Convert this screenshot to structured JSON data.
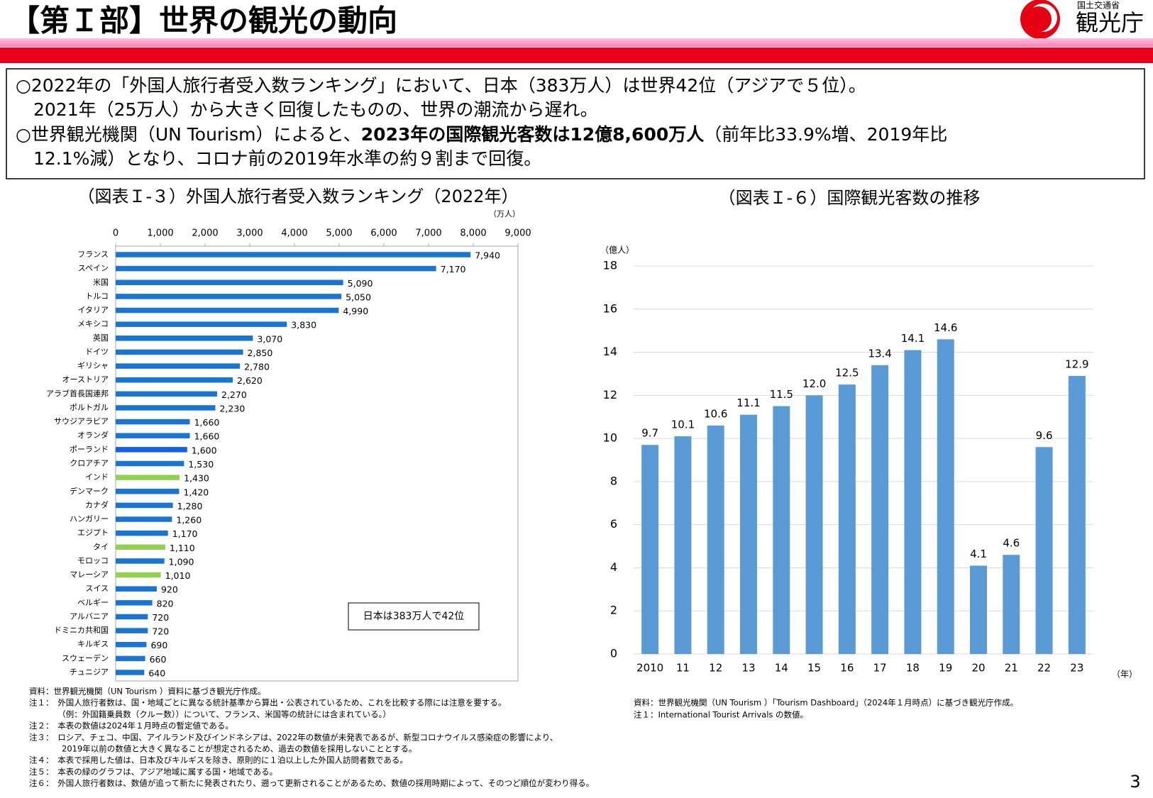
{
  "header": {
    "title": "【第Ｉ部】世界の観光の動向",
    "ministry": "国土交通省",
    "agency": "観光庁"
  },
  "summary": {
    "lines": [
      [
        "○2022年の「外国人旅行者受入数ランキング」において、日本（383万人）は世界42位（アジアで５位）。"
      ],
      [
        "　2021年（25万人）から大きく回復したものの、世界の潮流から遅れ。"
      ],
      [
        "○世界観光機関（UN Tourism）によると、",
        "2023年の国際観光客数は12億8,600万人",
        "（前年比33.9%増、2019年比"
      ],
      [
        "　12.1%減）となり、コロナ前の2019年水準の約９割まで回復。"
      ]
    ]
  },
  "chart_data": [
    {
      "type": "bar",
      "horizontal": true,
      "title": "（図表Ｉ-３）外国人旅行者受入数ランキング（2022年）",
      "unit": "（万人）",
      "categories": [
        "フランス",
        "スペイン",
        "米国",
        "トルコ",
        "イタリア",
        "メキシコ",
        "英国",
        "ドイツ",
        "ギリシャ",
        "オーストリア",
        "アラブ首長国連邦",
        "ポルトガル",
        "サウジアラビア",
        "オランダ",
        "ポーランド",
        "クロアチア",
        "インド",
        "デンマーク",
        "カナダ",
        "ハンガリー",
        "エジプト",
        "タイ",
        "モロッコ",
        "マレーシア",
        "スイス",
        "ベルギー",
        "アルバニア",
        "ドミニカ共和国",
        "キルギス",
        "スウェーデン",
        "チュニジア"
      ],
      "values": [
        7940,
        7170,
        5090,
        5050,
        4990,
        3830,
        3070,
        2850,
        2780,
        2620,
        2270,
        2230,
        1660,
        1660,
        1600,
        1530,
        1430,
        1420,
        1280,
        1260,
        1170,
        1110,
        1090,
        1010,
        920,
        820,
        720,
        720,
        690,
        660,
        640
      ],
      "value_labels": [
        "7,940",
        "7,170",
        "5,090",
        "5,050",
        "4,990",
        "3,830",
        "3,070",
        "2,850",
        "2,780",
        "2,620",
        "2,270",
        "2,230",
        "1,660",
        "1,660",
        "1,600",
        "1,530",
        "1,430",
        "1,420",
        "1,280",
        "1,260",
        "1,170",
        "1,110",
        "1,090",
        "1,010",
        "920",
        "820",
        "720",
        "720",
        "690",
        "660",
        "640"
      ],
      "colors": [
        "#1a75d2",
        "#1a75d2",
        "#1a75d2",
        "#1a75d2",
        "#1a75d2",
        "#1a75d2",
        "#1a75d2",
        "#1a75d2",
        "#1a75d2",
        "#1a75d2",
        "#1a75d2",
        "#1a75d2",
        "#1a75d2",
        "#1a75d2",
        "#1560e0",
        "#1a75d2",
        "#92d050",
        "#1a75d2",
        "#1a75d2",
        "#1a75d2",
        "#1a75d2",
        "#92d050",
        "#1a75d2",
        "#92d050",
        "#1a75d2",
        "#1a75d2",
        "#1a75d2",
        "#1a75d2",
        "#1a75d2",
        "#1a75d2",
        "#1a75d2"
      ],
      "xlim": [
        0,
        9000
      ],
      "xticks": [
        0,
        {
          "value": 1000,
          "label": "1,000"
        },
        {
          "value": 2000,
          "label": "2,000"
        },
        {
          "value": 3000,
          "label": "3,000"
        },
        {
          "value": 4000,
          "label": "4,000"
        },
        {
          "value": 5000,
          "label": "5,000"
        },
        {
          "value": 6000,
          "label": "6,000"
        },
        {
          "value": 7000,
          "label": "7,000"
        },
        {
          "value": 8000,
          "label": "8,000"
        },
        {
          "value": 9000,
          "label": "9,000"
        }
      ],
      "grid": false,
      "annotation": "日本は383万人で42位",
      "notes": [
        "資料：世界観光機関（UN Tourism ）資料に基づき観光庁作成。",
        "注１：　外国人旅行者数は、国・地域ごとに異なる統計基準から算出・公表されているため、これを比較する際には注意を要する。",
        "　　　　（例：外国籍乗員数（クルー数））について、フランス、米国等の統計には含まれている。）",
        "注２：　本表の数値は2024年１月時点の暫定値である。",
        "注３：　ロシア、チェコ、中国、アイルランド及びインドネシアは、2022年の数値が未発表であるが、新型コロナウイルス感染症の影響により、",
        "　　　　2019年以前の数値と大きく異なることが想定されるため、過去の数値を採用しないこととする。",
        "注４：　本表で採用した値は、日本及びキルギスを除き、原則的に１泊以上した外国人訪問者数である。",
        "注５：　本表の緑のグラフは、アジア地域に属する国・地域である。",
        "注６：　外国人旅行者数は、数値が追って新たに発表されたり、遡って更新されることがあるため、数値の採用時期によって、そのつど順位が変わり得る。"
      ]
    },
    {
      "type": "bar",
      "horizontal": false,
      "title": "（図表Ｉ-６）国際観光客数の推移",
      "unit": "（億人）",
      "x_unit": "（年）",
      "categories": [
        "2010",
        "11",
        "12",
        "13",
        "14",
        "15",
        "16",
        "17",
        "18",
        "19",
        "20",
        "21",
        "22",
        "23"
      ],
      "values": [
        9.7,
        10.1,
        10.6,
        11.1,
        11.5,
        12,
        12.5,
        13.4,
        14.1,
        14.6,
        4.1,
        4.6,
        9.6,
        12.9
      ],
      "value_labels": [
        "9.7",
        "10.1",
        "10.6",
        "11.1",
        "11.5",
        "12.0",
        "12.5",
        "13.4",
        "14.1",
        "14.6",
        "4.1",
        "4.6",
        "9.6",
        "12.9"
      ],
      "color": "#5b9bd5",
      "ylim": [
        0,
        18
      ],
      "yticks": [
        0,
        2,
        4,
        6,
        8,
        10,
        12,
        14,
        16,
        18
      ],
      "grid": true,
      "notes": [
        "資料：世界観光機関（UN Tourism ）「Tourism Dashboard」（2024年１月時点）に基づき観光庁作成。",
        "注１：International Tourist Arrivals の数値。"
      ]
    }
  ],
  "page_number": "3"
}
